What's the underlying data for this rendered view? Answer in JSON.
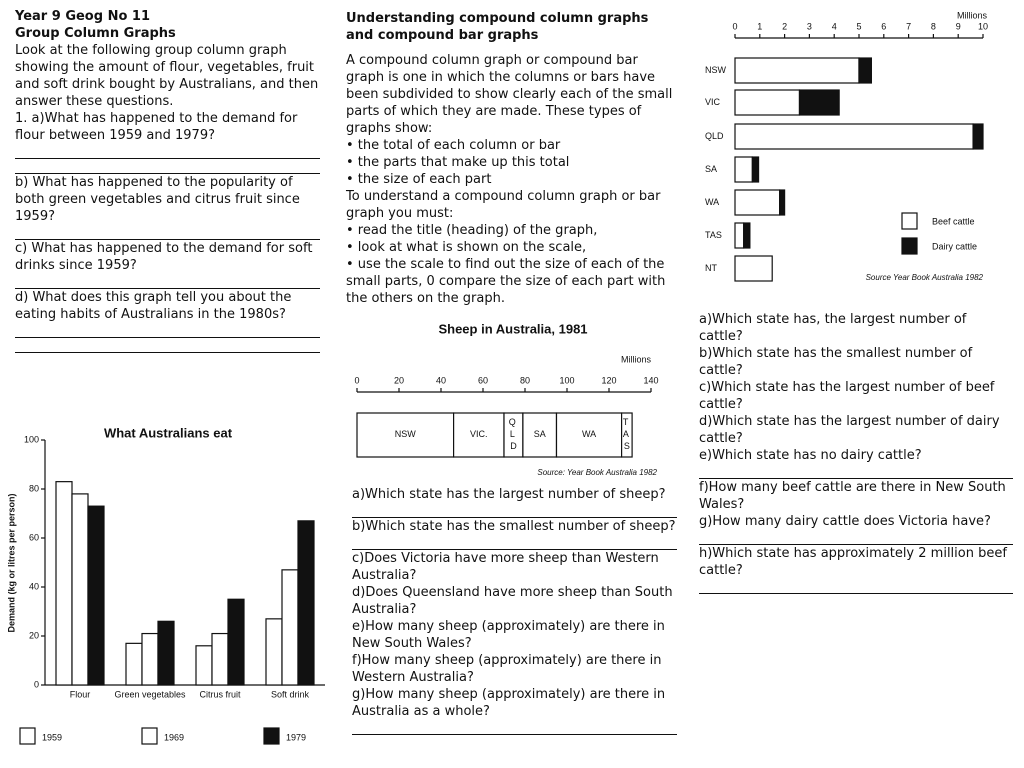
{
  "left": {
    "title": [
      "Year 9 Geog No 11",
      "Group Column Graphs"
    ],
    "intro": "Look at the following group column graph showing the amount of flour, vegetables, fruit and soft drink bought by Australians, and then answer these questions.",
    "questions": [
      "1. a)What has happened to the demand for flour between 1959 and 1979?",
      "b) What has happened to the popularity of both green vegetables and citrus fruit since 1959?",
      "c) What has happened to the demand for soft drinks since 1959?",
      "d) What does this graph tell you about the eating habits of Australians in the 1980s?"
    ]
  },
  "middle": {
    "heading": [
      "Understanding compound column graphs",
      "and compound bar graphs"
    ],
    "intro": "A compound column graph or compound bar graph is one in which the columns or bars have been subdivided to show clearly each of the small parts of which they are made. These types of graphs show:",
    "bullets1": [
      "• the total of each column or bar",
      "• the parts that make up this total",
      "• the size of each part"
    ],
    "instruction": "To understand a compound column graph or bar graph you must:",
    "bullets2": [
      "• read the title (heading) of the graph,",
      "• look at what is shown on the scale,",
      "• use the scale to find out the size of each of the small parts, 0 compare the size of each part with the others on the graph."
    ],
    "questions": [
      "a)Which state has the largest number of sheep?",
      "b)Which state has the smallest number of sheep?",
      "c)Does Victoria have more sheep than Western Australia?",
      "d)Does Queensland have more sheep than South Australia?",
      "e)How many sheep (approximately) are there in New South Wales?",
      "f)How many sheep (approximately) are there in Western Australia?",
      "g)How many sheep (approximately) are there in Australia as a whole?"
    ]
  },
  "right": {
    "questions": [
      "a)Which state has, the largest number of cattle?",
      "b)Which state has the smallest number of cattle?",
      "c)Which state has the largest number of beef cattle?",
      "d)Which state has the largest number of dairy cattle?",
      "e)Which state has no dairy cattle?",
      "f)How many beef cattle are there in New South Wales?",
      "g)How many dairy cattle does Victoria have?",
      "h)Which state has approximately 2 million beef cattle?"
    ]
  },
  "chart_data": [
    {
      "type": "bar",
      "title": "What Australians eat",
      "y_label": "Demand (kg or litres per person)",
      "categories": [
        "Flour",
        "Green vegetables",
        "Citrus fruit",
        "Soft drink"
      ],
      "series": [
        {
          "name": "1959",
          "color": "#ffffff",
          "values": [
            83,
            17,
            16,
            27
          ]
        },
        {
          "name": "1969",
          "color": "#ffffff",
          "values": [
            78,
            21,
            21,
            47
          ]
        },
        {
          "name": "1979",
          "color": "#111111",
          "values": [
            73,
            26,
            35,
            67
          ]
        }
      ],
      "ylim": [
        0,
        100
      ],
      "yticks": [
        0,
        20,
        40,
        60,
        80,
        100
      ]
    },
    {
      "type": "stacked-bar-horizontal",
      "title": "Sheep in Australia, 1981",
      "unit": "Millions",
      "source": "Source: Year Book Australia 1982",
      "series": [
        {
          "name": "NSW",
          "color": "#ffffff",
          "values": [
            46
          ]
        },
        {
          "name": "VIC.",
          "color": "#ffffff",
          "values": [
            24
          ]
        },
        {
          "name": "Q L D",
          "color": "#ffffff",
          "values": [
            9
          ]
        },
        {
          "name": "SA",
          "color": "#ffffff",
          "values": [
            16
          ]
        },
        {
          "name": "WA",
          "color": "#ffffff",
          "values": [
            31
          ]
        },
        {
          "name": "T A S",
          "color": "#ffffff",
          "values": [
            5
          ]
        }
      ],
      "xlim": [
        0,
        140
      ],
      "xticks": [
        0,
        20,
        40,
        60,
        80,
        100,
        120,
        140
      ]
    },
    {
      "type": "stacked-bar-horizontal",
      "unit": "Millions",
      "source": "Source Year Book Australia 1982",
      "categories": [
        "NSW",
        "VIC",
        "QLD",
        "SA",
        "WA",
        "TAS",
        "NT"
      ],
      "series": [
        {
          "name": "Beef cattle",
          "color": "#ffffff",
          "values": [
            5.0,
            2.6,
            9.6,
            0.7,
            1.8,
            0.35,
            1.5
          ]
        },
        {
          "name": "Dairy cattle",
          "color": "#111111",
          "values": [
            0.5,
            1.6,
            0.4,
            0.25,
            0.2,
            0.25,
            0
          ]
        }
      ],
      "xlim": [
        0,
        10
      ],
      "xticks": [
        0,
        1,
        2,
        3,
        4,
        5,
        6,
        7,
        8,
        9,
        10
      ]
    }
  ]
}
